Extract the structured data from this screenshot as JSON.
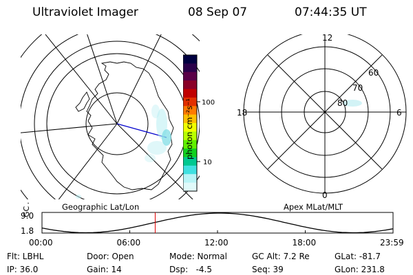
{
  "header": {
    "instrument": "Ultraviolet Imager",
    "date": "08 Sep 07",
    "time": "07:44:35 UT"
  },
  "left_panel": {
    "caption": "Geographic Lat/Lon"
  },
  "right_panel": {
    "caption": "Apex MLat/MLT",
    "mlt_labels": {
      "top": "12",
      "left": "18",
      "right": "6",
      "bottom": "0"
    },
    "mlat_labels": [
      "60",
      "70",
      "80"
    ]
  },
  "colorbar": {
    "label": "photon cm⁻²s⁻¹",
    "ticks": [
      "100",
      "10"
    ],
    "colors": [
      "#000040",
      "#2a004a",
      "#5a0047",
      "#8a0028",
      "#c00000",
      "#e23000",
      "#ff7a00",
      "#ffc000",
      "#f0ff00",
      "#b8ff00",
      "#60f000",
      "#10d020",
      "#00c890",
      "#40e0e0",
      "#b8f4f6",
      "#e0fafa"
    ]
  },
  "gc_alt_strip": {
    "axis_label": "GC Alt",
    "y_ticks": [
      "9.0",
      "1.8"
    ],
    "x_ticks": [
      "00:00",
      "06:00",
      "12:00",
      "18:00",
      "23:59"
    ],
    "marker_time_hours": 7.74,
    "marker_color": "#e00000"
  },
  "footer": {
    "filter": "Flt: LBHL",
    "ip": "IP: 36.0",
    "door": "Door: Open",
    "gain": "Gain: 14",
    "mode": "Mode: Normal",
    "dsp": "Dsp:   -4.5",
    "gc_alt": "GC Alt: 7.2 Re",
    "seq": "Seq: 39",
    "glat": "GLat: -81.7",
    "glon": "GLon: 231.8"
  }
}
